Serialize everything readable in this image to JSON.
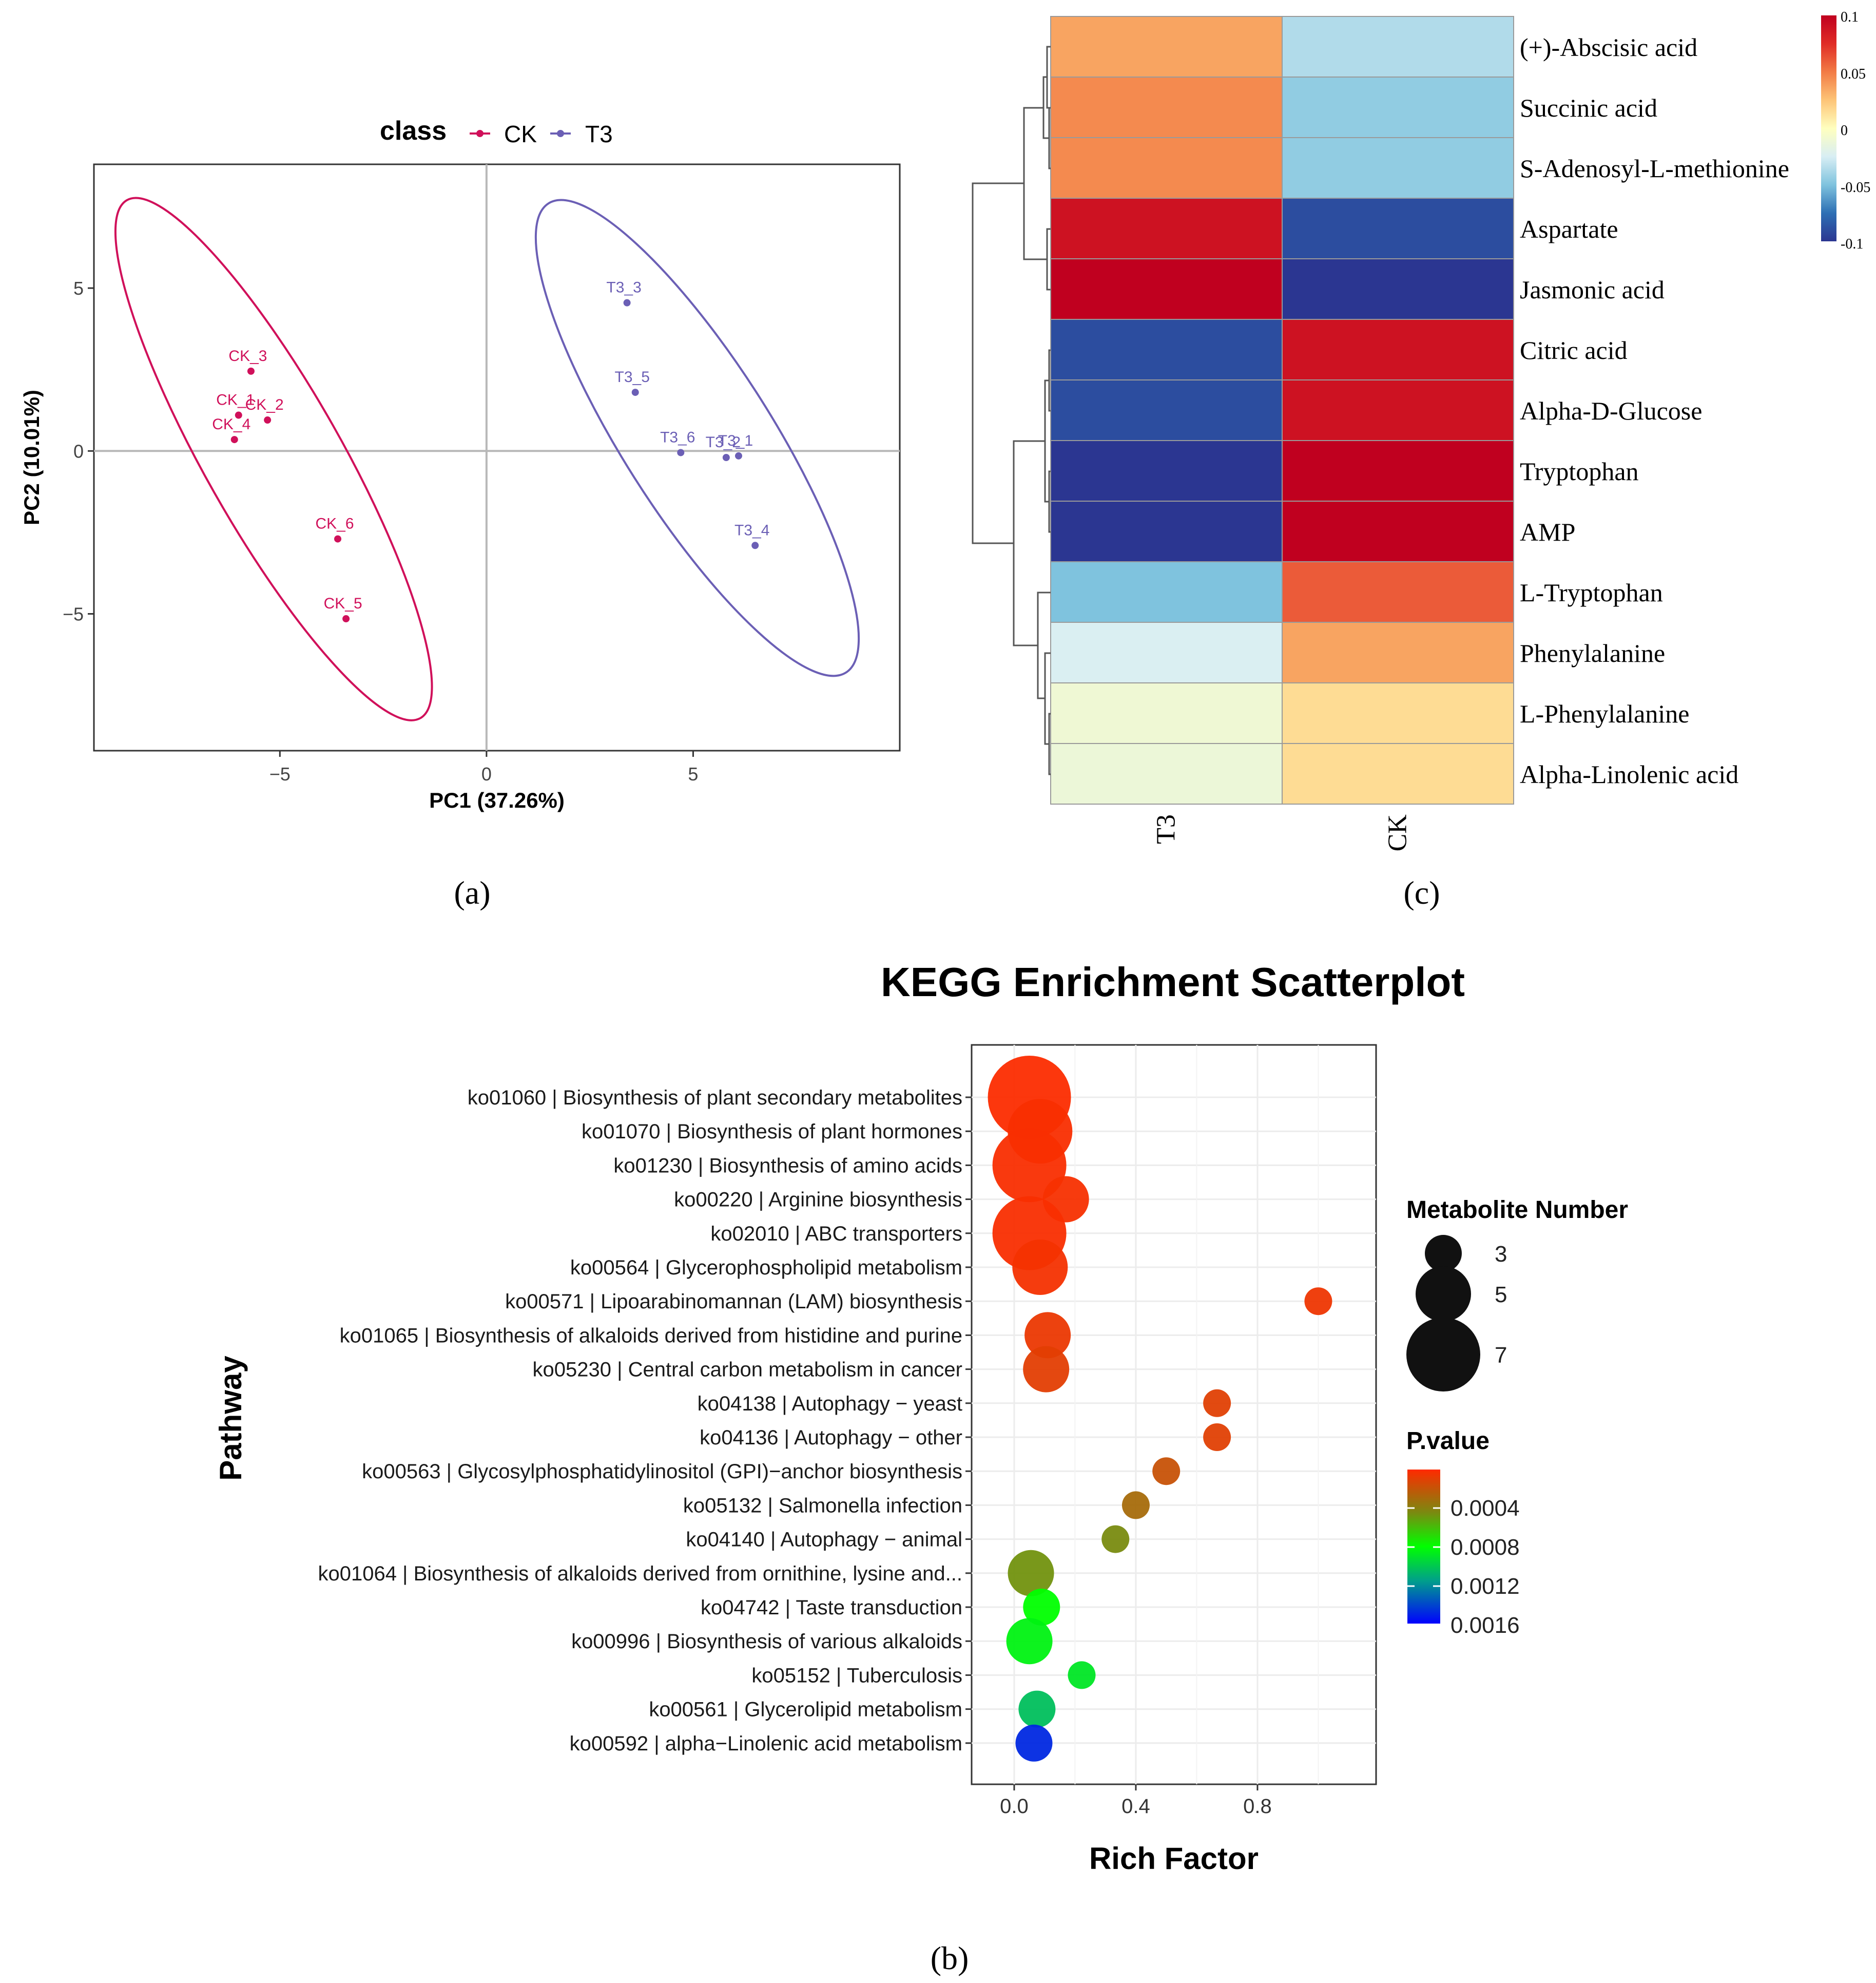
{
  "panel_labels": {
    "a": "(a)",
    "b": "(b)",
    "c": "(c)"
  },
  "chart_data": [
    {
      "panel": "a",
      "type": "scatter",
      "title": "",
      "legend_title": "class",
      "xlabel": "PC1 (37.26%)",
      "ylabel": "PC2 (10.01%)",
      "xlim": [
        -9.5,
        10
      ],
      "ylim": [
        -9.2,
        8.8
      ],
      "xticks": [
        -5,
        0,
        5
      ],
      "yticks": [
        -5,
        0,
        5
      ],
      "grid": false,
      "series": [
        {
          "name": "CK",
          "color": "#d0105a",
          "points": [
            {
              "label": "CK_1",
              "x": -6.0,
              "y": 1.1
            },
            {
              "label": "CK_2",
              "x": -5.3,
              "y": 0.95
            },
            {
              "label": "CK_3",
              "x": -5.7,
              "y": 2.45
            },
            {
              "label": "CK_4",
              "x": -6.1,
              "y": 0.35
            },
            {
              "label": "CK_5",
              "x": -3.4,
              "y": -5.15
            },
            {
              "label": "CK_6",
              "x": -3.6,
              "y": -2.7
            }
          ],
          "ellipse": {
            "cx": -5.1,
            "cy": 0.0,
            "p1": [
              -8.7,
              7.7
            ],
            "p2": [
              -1.6,
              -8.2
            ],
            "w": 1.65
          }
        },
        {
          "name": "T3",
          "color": "#6b5fb5",
          "points": [
            {
              "label": "T3_1",
              "x": 6.1,
              "y": -0.15
            },
            {
              "label": "T3_2",
              "x": 5.8,
              "y": -0.2
            },
            {
              "label": "T3_3",
              "x": 3.4,
              "y": 4.55
            },
            {
              "label": "T3_4",
              "x": 6.5,
              "y": -2.9
            },
            {
              "label": "T3_5",
              "x": 3.6,
              "y": 1.8
            },
            {
              "label": "T3_6",
              "x": 4.7,
              "y": -0.05
            }
          ],
          "ellipse": {
            "cx": 5.1,
            "cy": 0.0,
            "p1": [
              1.5,
              7.6
            ],
            "p2": [
              8.7,
              -6.8
            ],
            "w": 1.8
          }
        }
      ]
    },
    {
      "panel": "c",
      "type": "heatmap",
      "columns": [
        "T3",
        "CK"
      ],
      "rows": [
        {
          "name": "(+)-Abscisic acid",
          "values": [
            0.036,
            -0.036
          ]
        },
        {
          "name": "Succinic acid",
          "values": [
            0.045,
            -0.045
          ]
        },
        {
          "name": "S-Adenosyl-L-methionine",
          "values": [
            0.045,
            -0.045
          ]
        },
        {
          "name": "Aspartate",
          "values": [
            0.09,
            -0.09
          ]
        },
        {
          "name": "Jasmonic acid",
          "values": [
            0.1,
            -0.1
          ]
        },
        {
          "name": "Citric acid",
          "values": [
            -0.09,
            0.09
          ]
        },
        {
          "name": "Alpha-D-Glucose",
          "values": [
            -0.09,
            0.09
          ]
        },
        {
          "name": "Tryptophan",
          "values": [
            -0.1,
            0.1
          ]
        },
        {
          "name": "AMP",
          "values": [
            -0.1,
            0.1
          ]
        },
        {
          "name": "L-Tryptophan",
          "values": [
            -0.05,
            0.06
          ]
        },
        {
          "name": "Phenylalanine",
          "values": [
            -0.024,
            0.036
          ]
        },
        {
          "name": "L-Phenylalanine",
          "values": [
            -0.01,
            0.015
          ]
        },
        {
          "name": "Alpha-Linolenic acid",
          "values": [
            -0.012,
            0.015
          ]
        }
      ],
      "scale": {
        "min": -0.1,
        "max": 0.1,
        "ticks": [
          "0.1",
          "0.05",
          "0",
          "-0.05",
          "-0.1"
        ]
      },
      "colors": [
        "#2b3691",
        "#2d6fb4",
        "#7fc3de",
        "#d8eef4",
        "#ffffbf",
        "#fdc477",
        "#f27b45",
        "#e02c26",
        "#c0001f"
      ]
    },
    {
      "panel": "b",
      "type": "scatter",
      "title": "KEGG Enrichment Scatterplot",
      "xlabel": "Rich Factor",
      "ylabel": "Pathway",
      "xlim": [
        -0.14,
        1.19
      ],
      "xticks": [
        "0.0",
        "0.4",
        "0.8"
      ],
      "grid": true,
      "size_legend": {
        "title": "Metabolite Number",
        "values": [
          3,
          5,
          7
        ]
      },
      "color_legend": {
        "title": "P.value",
        "ticks": [
          "0.0004",
          "0.0008",
          "0.0012",
          "0.0016"
        ],
        "min": 0.0,
        "max": 0.0017
      },
      "pathways": [
        {
          "label": "ko01060 | Biosynthesis of plant secondary metabolites",
          "rich": 0.05,
          "count": 8,
          "p": 1e-05
        },
        {
          "label": "ko01070 | Biosynthesis of plant hormones",
          "rich": 0.085,
          "count": 6,
          "p": 2e-05
        },
        {
          "label": "ko01230 | Biosynthesis of amino acids",
          "rich": 0.05,
          "count": 7,
          "p": 2e-05
        },
        {
          "label": "ko00220 | Arginine biosynthesis",
          "rich": 0.17,
          "count": 4,
          "p": 3e-05
        },
        {
          "label": "ko02010 | ABC transporters",
          "rich": 0.05,
          "count": 7,
          "p": 2e-05
        },
        {
          "label": "ko00564 | Glycerophospholipid metabolism",
          "rich": 0.085,
          "count": 5,
          "p": 4e-05
        },
        {
          "label": "ko00571 | Lipoarabinomannan (LAM) biosynthesis",
          "rich": 1.0,
          "count": 2,
          "p": 6e-05
        },
        {
          "label": "ko01065 | Biosynthesis of alkaloids derived from histidine and purine",
          "rich": 0.11,
          "count": 4,
          "p": 7e-05
        },
        {
          "label": "ko05230 | Central carbon metabolism in cancer",
          "rich": 0.105,
          "count": 4,
          "p": 0.0001
        },
        {
          "label": "ko04138 | Autophagy − yeast",
          "rich": 0.667,
          "count": 2,
          "p": 0.00011
        },
        {
          "label": "ko04136 | Autophagy − other",
          "rich": 0.667,
          "count": 2,
          "p": 0.00011
        },
        {
          "label": "ko00563 | Glycosylphosphatidylinositol (GPI)−anchor biosynthesis",
          "rich": 0.5,
          "count": 2,
          "p": 0.0002
        },
        {
          "label": "ko05132 | Salmonella infection",
          "rich": 0.4,
          "count": 2,
          "p": 0.00032
        },
        {
          "label": "ko04140 | Autophagy − animal",
          "rich": 0.333,
          "count": 2,
          "p": 0.00048
        },
        {
          "label": "ko01064 | Biosynthesis of alkaloids derived from ornithine, lysine and...",
          "rich": 0.055,
          "count": 4,
          "p": 0.0005
        },
        {
          "label": "ko04742 | Taste transduction",
          "rich": 0.09,
          "count": 3,
          "p": 0.00085
        },
        {
          "label": "ko00996 | Biosynthesis of various alkaloids",
          "rich": 0.05,
          "count": 4,
          "p": 0.0009
        },
        {
          "label": "ko05152 | Tuberculosis",
          "rich": 0.222,
          "count": 2,
          "p": 0.00095
        },
        {
          "label": "ko00561 | Glycerolipid metabolism",
          "rich": 0.075,
          "count": 3,
          "p": 0.0011
        },
        {
          "label": "ko00592 | alpha−Linolenic acid metabolism",
          "rich": 0.065,
          "count": 3,
          "p": 0.00158
        }
      ]
    }
  ]
}
